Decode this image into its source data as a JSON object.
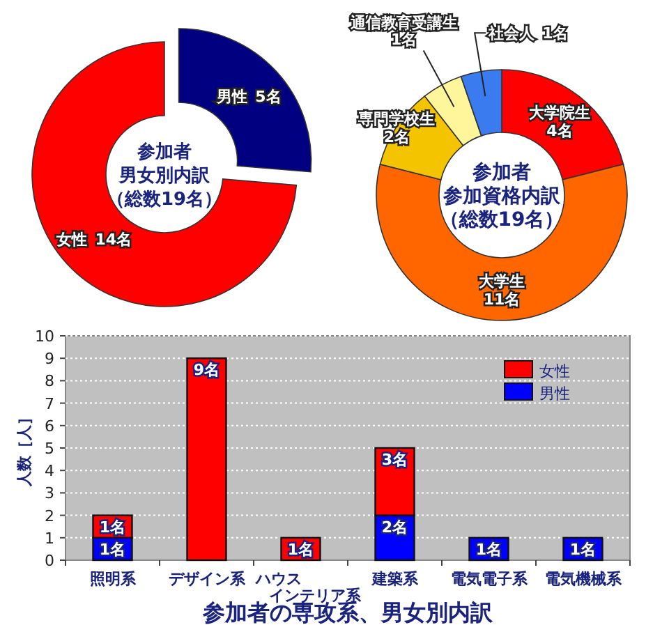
{
  "chart_data": [
    {
      "type": "donut",
      "title": "参加者",
      "subtitle": "男女別内訳",
      "annotations": [
        "（総数19名）"
      ],
      "categories": [
        "男性",
        "女性"
      ],
      "values": [
        5,
        14
      ],
      "value_labels": [
        "5名",
        "14名"
      ],
      "colors": [
        "#000080",
        "#ff0000"
      ]
    },
    {
      "type": "donut",
      "title": "参加者",
      "subtitle": "参加資格内訳",
      "annotations": [
        "（総数19名）"
      ],
      "categories": [
        "大学院生",
        "大学生",
        "専門学校生",
        "通信教育受講生",
        "社会人"
      ],
      "values": [
        4,
        11,
        2,
        1,
        1
      ],
      "value_labels": [
        "4名",
        "11名",
        "2名",
        "1名",
        "1名"
      ],
      "colors": [
        "#ff0000",
        "#ff6600",
        "#f5c400",
        "#fff59a",
        "#3a7bf0"
      ]
    },
    {
      "type": "bar",
      "stacked": true,
      "xlabel": "参加者の専攻系、男女別内訳",
      "ylabel": "人数［人］",
      "categories": [
        "照明系",
        "デザイン系",
        "ハウスインテリア系",
        "建築系",
        "電気電子系",
        "電気機械系"
      ],
      "ylim": [
        0,
        10
      ],
      "yticks": [
        0,
        1,
        2,
        3,
        4,
        5,
        6,
        7,
        8,
        9,
        10
      ],
      "grid": "y",
      "legend": "top right",
      "series": [
        {
          "name": "男性",
          "color": "#0000ff",
          "values": [
            1,
            0,
            0,
            2,
            1,
            1
          ],
          "value_labels": [
            "1名",
            null,
            null,
            "2名",
            "1名",
            "1名"
          ]
        },
        {
          "name": "女性",
          "color": "#ff0000",
          "values": [
            1,
            9,
            1,
            3,
            0,
            0
          ],
          "value_labels": [
            "1名",
            "9名",
            "1名",
            "3名",
            null,
            null
          ]
        }
      ]
    }
  ]
}
